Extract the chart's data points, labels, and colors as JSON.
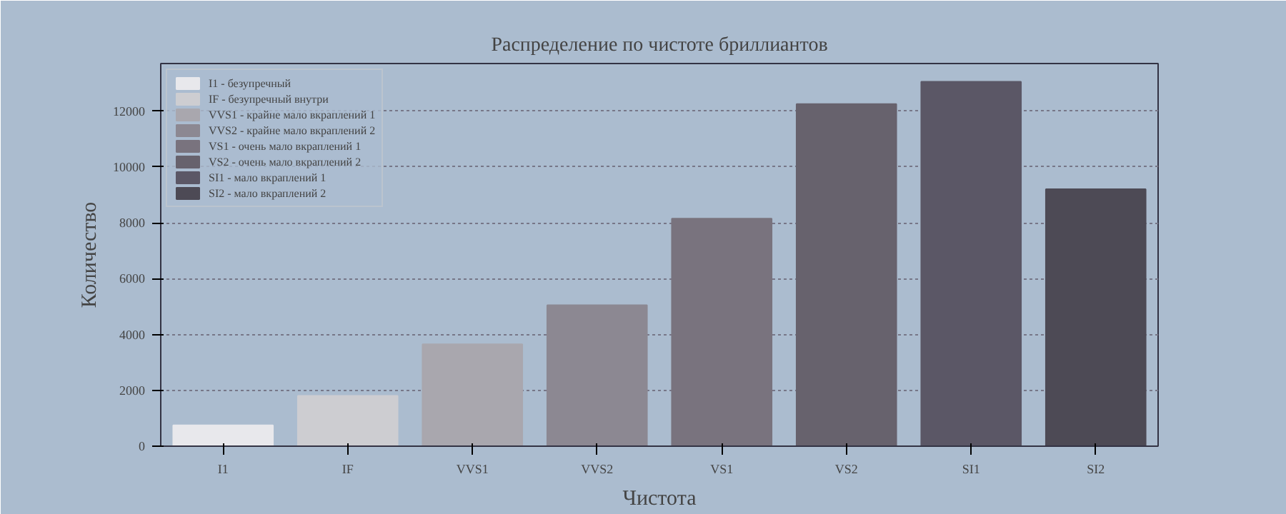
{
  "chart_data": {
    "type": "bar",
    "title": "Распределение по чистоте бриллиантов",
    "xlabel": "Чистота",
    "ylabel": "Количество",
    "categories": [
      "I1",
      "IF",
      "VVS1",
      "VVS2",
      "VS1",
      "VS2",
      "SI1",
      "SI2"
    ],
    "series": [
      {
        "name": "I1 - безупречный",
        "color": "#e8e8ec",
        "values": [
          750,
          null,
          null,
          null,
          null,
          null,
          null,
          null
        ]
      },
      {
        "name": "IF - безупречный внутри",
        "color": "#cdcdd1",
        "values": [
          null,
          1800,
          null,
          null,
          null,
          null,
          null,
          null
        ]
      },
      {
        "name": "VVS1 - крайне мало вкраплений 1",
        "color": "#a9a7ae",
        "values": [
          null,
          null,
          3650,
          null,
          null,
          null,
          null,
          null
        ]
      },
      {
        "name": "VVS2 - крайне мало вкраплений 2",
        "color": "#8c8892",
        "values": [
          null,
          null,
          null,
          5050,
          null,
          null,
          null,
          null
        ]
      },
      {
        "name": "VS1 - очень мало вкраплений 1",
        "color": "#79737e",
        "values": [
          null,
          null,
          null,
          null,
          8150,
          null,
          null,
          null
        ]
      },
      {
        "name": "VS2 - очень мало вкраплений 2",
        "color": "#67626d",
        "values": [
          null,
          null,
          null,
          null,
          null,
          12250,
          null,
          null
        ]
      },
      {
        "name": "SI1 - мало вкраплений 1",
        "color": "#5b5766",
        "values": [
          null,
          null,
          null,
          null,
          null,
          null,
          13050,
          null
        ]
      },
      {
        "name": "SI2 - мало вкраплений 2",
        "color": "#4d4a55",
        "values": [
          null,
          null,
          null,
          null,
          null,
          null,
          null,
          9200
        ]
      }
    ],
    "ylim": [
      0,
      13700
    ],
    "yticks": [
      0,
      2000,
      4000,
      6000,
      8000,
      10000,
      12000
    ],
    "grid": "y",
    "legend": "top left"
  }
}
